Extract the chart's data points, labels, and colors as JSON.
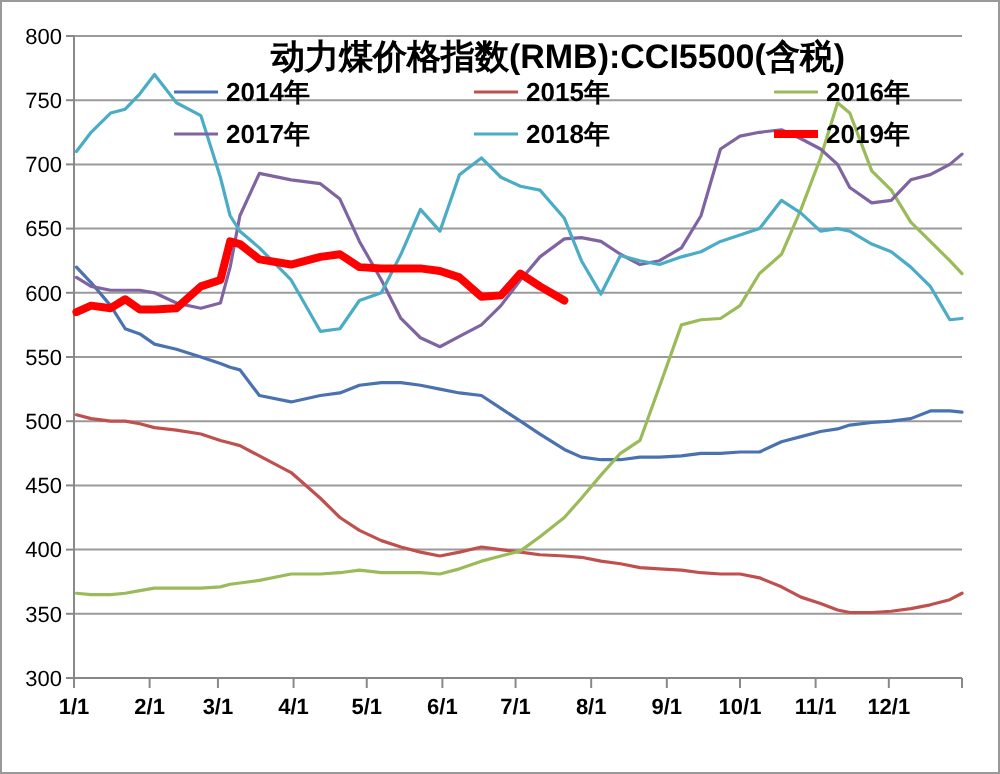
{
  "chart_data": {
    "type": "line",
    "title": "动力煤价格指数(RMB):CCI5500(含税)",
    "x": [
      "--01-02",
      "--01-08",
      "--01-16",
      "--01-22",
      "--01-28",
      "--02-03",
      "--02-12",
      "--02-22",
      "--03-02",
      "--03-06",
      "--03-10",
      "--03-18",
      "--03-31",
      "--04-12",
      "--04-20",
      "--04-28",
      "--05-07",
      "--05-15",
      "--05-23",
      "--05-31",
      "--06-08",
      "--06-17",
      "--06-25",
      "--07-03",
      "--07-11",
      "--07-21",
      "--07-28",
      "--08-05",
      "--08-13",
      "--08-21",
      "--08-29",
      "--09-07",
      "--09-15",
      "--09-23",
      "--10-01",
      "--10-09",
      "--10-18",
      "--10-26",
      "--11-03",
      "--11-10",
      "--11-15",
      "--11-24",
      "--12-02",
      "--12-10",
      "--12-18",
      "--12-26",
      "--12-31"
    ],
    "series": [
      {
        "name": "2014年",
        "color": "#4a72b0",
        "values": [
          620,
          608,
          590,
          572,
          568,
          560,
          556,
          550,
          545,
          542,
          540,
          520,
          515,
          520,
          522,
          528,
          530,
          530,
          528,
          525,
          522,
          520,
          510,
          500,
          490,
          478,
          472,
          470,
          470,
          472,
          472,
          473,
          475,
          475,
          476,
          476,
          484,
          488,
          492,
          494,
          497,
          499,
          500,
          502,
          508,
          508,
          507
        ]
      },
      {
        "name": "2015年",
        "color": "#c0504d",
        "values": [
          505,
          502,
          500,
          500,
          498,
          495,
          493,
          490,
          485,
          483,
          481,
          473,
          460,
          440,
          425,
          415,
          407,
          402,
          398,
          395,
          398,
          402,
          400,
          398,
          396,
          395,
          394,
          391,
          389,
          386,
          385,
          384,
          382,
          381,
          381,
          378,
          371,
          363,
          358,
          353,
          351,
          351,
          352,
          354,
          357,
          361,
          366
        ]
      },
      {
        "name": "2016年",
        "color": "#9bbb59",
        "values": [
          366,
          365,
          365,
          366,
          368,
          370,
          370,
          370,
          371,
          373,
          374,
          376,
          381,
          381,
          382,
          384,
          382,
          382,
          382,
          381,
          385,
          391,
          395,
          399,
          410,
          425,
          440,
          458,
          475,
          485,
          527,
          575,
          579,
          580,
          590,
          615,
          630,
          665,
          705,
          748,
          740,
          695,
          680,
          655,
          640,
          625,
          615
        ]
      },
      {
        "name": "2017年",
        "color": "#8064a2",
        "values": [
          612,
          605,
          602,
          602,
          602,
          600,
          592,
          588,
          592,
          620,
          660,
          693,
          688,
          685,
          673,
          640,
          610,
          580,
          565,
          558,
          566,
          575,
          590,
          610,
          628,
          642,
          643,
          640,
          630,
          622,
          625,
          635,
          660,
          712,
          722,
          725,
          727,
          720,
          712,
          700,
          682,
          670,
          672,
          688,
          692,
          700,
          708
        ]
      },
      {
        "name": "2018年",
        "color": "#4bacc6",
        "values": [
          710,
          725,
          740,
          743,
          755,
          770,
          748,
          738,
          690,
          660,
          648,
          635,
          610,
          570,
          572,
          594,
          600,
          630,
          665,
          648,
          692,
          705,
          690,
          683,
          680,
          658,
          625,
          599,
          629,
          625,
          622,
          628,
          632,
          640,
          645,
          650,
          672,
          662,
          648,
          650,
          648,
          638,
          632,
          620,
          605,
          579,
          580
        ]
      },
      {
        "name": "2019年",
        "color": "#ff0000",
        "values": [
          585,
          590,
          588,
          595,
          587,
          587,
          588,
          605,
          610,
          640,
          638,
          626,
          622,
          628,
          630,
          620,
          619,
          619,
          619,
          617,
          612,
          597,
          598,
          615,
          605,
          594,
          null,
          null,
          null,
          null,
          null,
          null,
          null,
          null,
          null,
          null,
          null,
          null,
          null,
          null,
          null,
          null,
          null,
          null,
          null,
          null,
          null
        ]
      }
    ],
    "xlim": [
      "--01-01",
      "--12-31"
    ],
    "xticks": [
      {
        "value": "--01-01",
        "label": "1/1"
      },
      {
        "value": "--02-01",
        "label": "2/1"
      },
      {
        "value": "--03-01",
        "label": "3/1"
      },
      {
        "value": "--04-01",
        "label": "4/1"
      },
      {
        "value": "--05-01",
        "label": "5/1"
      },
      {
        "value": "--06-01",
        "label": "6/1"
      },
      {
        "value": "--07-01",
        "label": "7/1"
      },
      {
        "value": "--08-01",
        "label": "8/1"
      },
      {
        "value": "--09-01",
        "label": "9/1"
      },
      {
        "value": "--10-01",
        "label": "10/1"
      },
      {
        "value": "--11-01",
        "label": "11/1"
      },
      {
        "value": "--12-01",
        "label": "12/1"
      }
    ],
    "ylim": [
      300,
      800
    ],
    "yticks": [
      300,
      350,
      400,
      450,
      500,
      550,
      600,
      650,
      700,
      750,
      800
    ],
    "grid": "y",
    "legend": "top",
    "marker": "none",
    "line_style": "solid"
  }
}
